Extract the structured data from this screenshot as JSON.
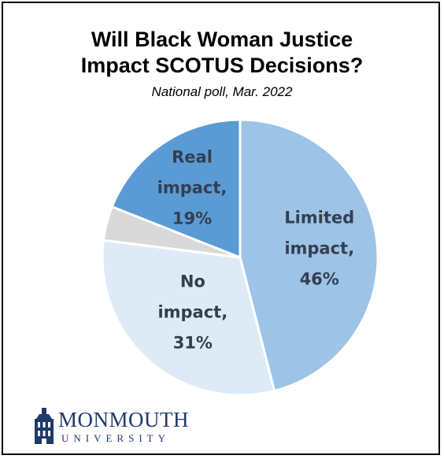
{
  "chart_data": {
    "type": "pie",
    "title_lines": [
      "Will Black Woman Justice",
      "Impact SCOTUS Decisions?"
    ],
    "subtitle": "National poll, Mar. 2022",
    "start_angle_deg": 0,
    "direction": "clockwise",
    "slices": [
      {
        "category": "Limited impact",
        "value": 46,
        "color": "#9dc3e6",
        "label_lines": [
          "Limited",
          "impact,",
          "46%"
        ]
      },
      {
        "category": "No impact",
        "value": 31,
        "color": "#deebf7",
        "label_lines": [
          "No",
          "impact,",
          "31%"
        ]
      },
      {
        "category": "",
        "value": 4,
        "color": "#d9d9d9",
        "label_lines": []
      },
      {
        "category": "Real impact",
        "value": 19,
        "color": "#5b9bd5",
        "label_lines": [
          "Real",
          "impact,",
          "19%"
        ]
      }
    ],
    "label_color": "#333f50"
  },
  "logo": {
    "name": "MONMOUTH",
    "sub": "UNIVERSITY",
    "color": "#1f3a6b"
  }
}
